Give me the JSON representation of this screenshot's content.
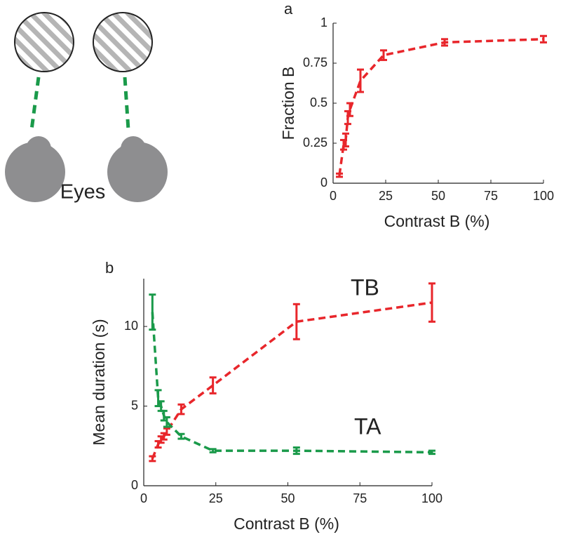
{
  "diagram": {
    "label": "Eyes"
  },
  "chart_data": [
    {
      "type": "line",
      "label": "a",
      "xlabel": "Contrast B (%)",
      "ylabel": "Fraction B",
      "x": [
        3,
        5,
        6,
        7,
        8,
        13,
        24,
        53,
        100
      ],
      "xlim": [
        0,
        100
      ],
      "xticks": [
        0,
        25,
        50,
        75,
        100
      ],
      "ylim": [
        0,
        1
      ],
      "yticks": [
        0,
        0.25,
        0.5,
        0.75,
        1
      ],
      "series": [
        {
          "color": "#e8262b",
          "values": [
            0.05,
            0.24,
            0.27,
            0.41,
            0.46,
            0.64,
            0.8,
            0.88,
            0.9
          ],
          "errors": [
            0.01,
            0.03,
            0.04,
            0.04,
            0.04,
            0.07,
            0.03,
            0.02,
            0.02
          ]
        }
      ]
    },
    {
      "type": "line",
      "label": "b",
      "xlabel": "Contrast B (%)",
      "ylabel": "Mean duration (s)",
      "x": [
        3,
        5,
        6,
        7,
        8,
        13,
        24,
        53,
        100
      ],
      "xlim": [
        0,
        100
      ],
      "xticks": [
        0,
        25,
        50,
        75,
        100
      ],
      "ylim": [
        0,
        13
      ],
      "yticks": [
        0,
        5,
        10
      ],
      "series": [
        {
          "name": "TB",
          "color": "#e8262b",
          "values": [
            1.7,
            2.6,
            2.9,
            3.1,
            3.4,
            4.8,
            6.3,
            10.3,
            11.5
          ],
          "errors": [
            0.15,
            0.2,
            0.2,
            0.2,
            0.2,
            0.3,
            0.5,
            1.1,
            1.2
          ]
        },
        {
          "name": "TA",
          "color": "#1a9a4a",
          "values": [
            10.9,
            5.5,
            5.0,
            4.4,
            4.0,
            3.1,
            2.2,
            2.2,
            2.1
          ],
          "errors": [
            1.1,
            0.5,
            0.3,
            0.3,
            0.3,
            0.15,
            0.1,
            0.2,
            0.1
          ]
        }
      ]
    }
  ]
}
